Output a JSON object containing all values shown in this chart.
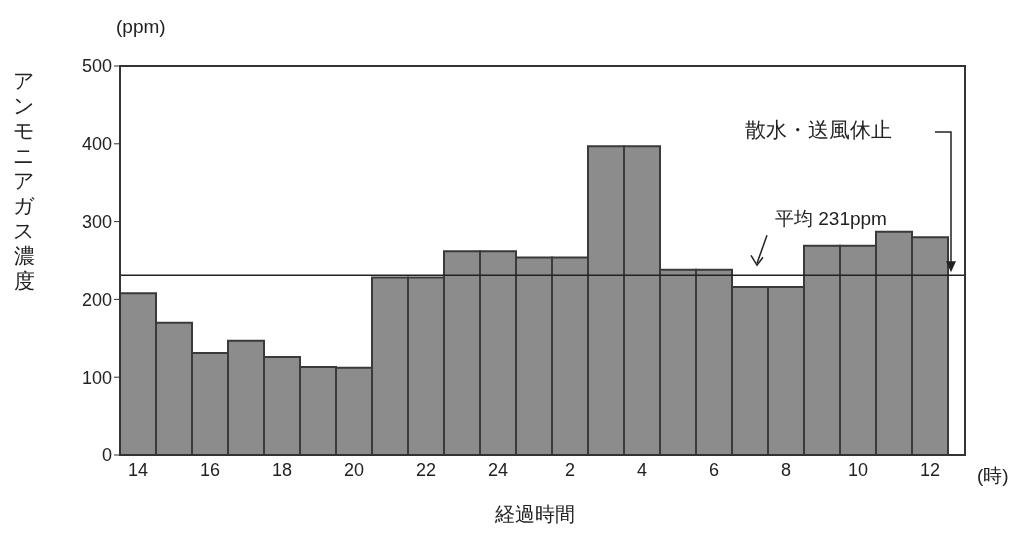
{
  "chart_data": {
    "type": "bar",
    "xlabel": "経過時間",
    "ylabel": "アンモニアガス濃度",
    "categories": [
      "14",
      null,
      "16",
      null,
      "18",
      null,
      "20",
      null,
      "22",
      null,
      "24",
      null,
      "2",
      null,
      "4",
      null,
      "6",
      null,
      "8",
      null,
      "10",
      null,
      "12"
    ],
    "values": [
      208,
      170,
      131,
      147,
      126,
      113,
      112,
      228,
      228,
      262,
      262,
      254,
      254,
      397,
      397,
      238,
      238,
      216,
      216,
      269,
      269,
      287,
      280
    ],
    "color": "#8c8c8c",
    "ylim": [
      0,
      500
    ],
    "yticks": [
      0,
      100,
      200,
      300,
      400,
      500
    ],
    "ref_lines": [
      {
        "axis": "y",
        "value": 231,
        "label": "平均 231ppm",
        "color": "#222222"
      }
    ],
    "annotations": [
      "(ppm)",
      "(時)",
      "散水・送風休止"
    ],
    "grid": false,
    "legend": false
  }
}
